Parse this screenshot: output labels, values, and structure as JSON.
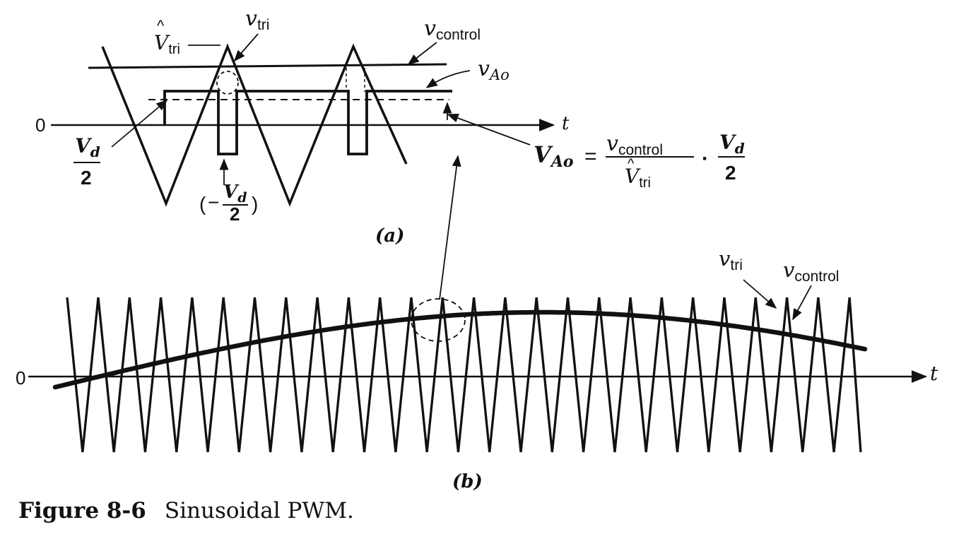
{
  "figure": {
    "caption_number": "Figure 8-6",
    "caption_title": "Sinusoidal PWM."
  },
  "panel_a": {
    "label": "(a)",
    "zero": "0",
    "axis": "t",
    "v_tri": {
      "v": "v",
      "sub": "tri"
    },
    "v_tri_peak": {
      "v": "V",
      "hat": "^",
      "sub": "tri"
    },
    "v_control": {
      "v": "v",
      "sub": "control"
    },
    "v_Ao": {
      "v": "v",
      "sub": "Ao"
    },
    "vd2": {
      "num": "V",
      "num_sub": "d",
      "den": "2"
    },
    "neg_vd2": {
      "open": "(",
      "minus": "−",
      "num": "V",
      "num_sub": "d",
      "den": "2",
      "close": ")"
    },
    "equation": {
      "lhs": "V",
      "lhs_sub": "Ao",
      "eq": "=",
      "frac1_num": "v",
      "frac1_num_sub": "control",
      "frac1_den": "V",
      "frac1_den_hat": "^",
      "frac1_den_sub": "tri",
      "dot": "·",
      "frac2_num": "V",
      "frac2_num_sub": "d",
      "frac2_den": "2"
    }
  },
  "panel_b": {
    "label": "(b)",
    "zero": "0",
    "axis": "t",
    "v_tri": {
      "v": "v",
      "sub": "tri"
    },
    "v_control": {
      "v": "v",
      "sub": "control"
    }
  }
}
